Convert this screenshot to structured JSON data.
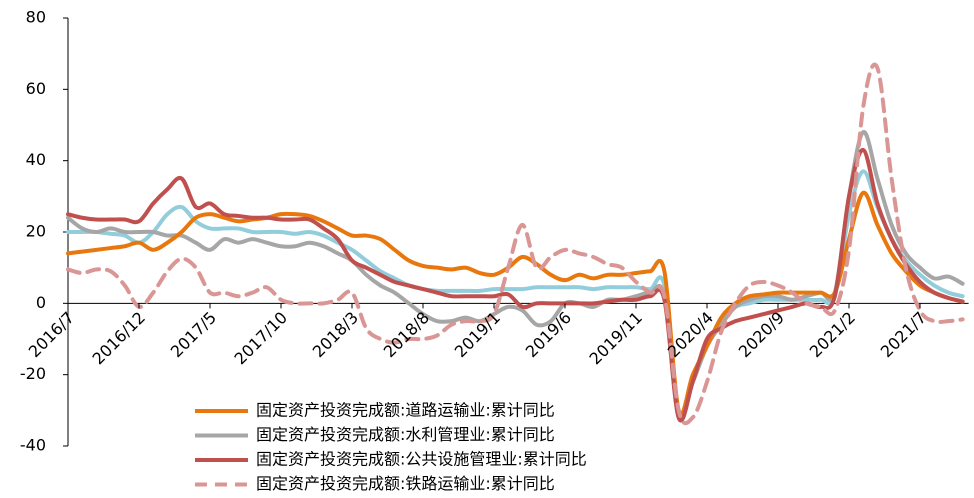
{
  "chart_data": {
    "type": "line",
    "categories": [
      "2016/7",
      null,
      null,
      null,
      null,
      "2016/12",
      null,
      null,
      null,
      null,
      "2017/5",
      null,
      null,
      null,
      null,
      "2017/10",
      null,
      null,
      null,
      null,
      "2018/3",
      null,
      null,
      null,
      null,
      "2018/8",
      null,
      null,
      null,
      null,
      "2019/1",
      null,
      null,
      null,
      null,
      "2019/6",
      null,
      null,
      null,
      null,
      "2019/11",
      null,
      null,
      null,
      null,
      "2020/4",
      null,
      null,
      null,
      null,
      "2020/9",
      null,
      null,
      null,
      null,
      "2021/2",
      null,
      null,
      null,
      null,
      "2021/7",
      null,
      null,
      null
    ],
    "series": [
      {
        "name": "固定资产投资完成额:道路运输业:累计同比",
        "color": "#e8770e",
        "dash": false,
        "values": [
          14,
          14.5,
          15,
          15.5,
          16,
          17,
          15,
          17,
          20,
          24,
          25,
          24,
          23,
          23.5,
          24,
          25,
          25,
          24.5,
          23,
          21,
          19,
          19,
          18,
          15,
          12,
          10.5,
          10,
          9.5,
          10,
          8.5,
          8,
          10,
          13,
          11,
          8,
          6.5,
          8,
          7,
          8,
          8,
          8.5,
          9,
          9,
          -30,
          -20,
          -12,
          -4,
          0,
          2,
          2.5,
          3,
          3,
          3,
          3,
          3,
          18,
          31,
          22,
          14,
          9,
          5,
          3,
          1.5,
          0.5
        ]
      },
      {
        "name": "固定资产投资完成额:水利管理业:累计同比",
        "color": "#a6a6a6",
        "dash": false,
        "values": [
          24,
          21,
          20,
          21,
          20,
          20,
          20,
          19,
          19,
          17,
          15,
          18,
          17,
          18,
          17,
          16,
          16,
          17,
          16,
          14,
          12,
          8,
          5,
          3,
          0,
          -3,
          -5,
          -5,
          -4,
          -5,
          -3,
          -1,
          -2,
          -6,
          -5,
          0,
          0,
          -1,
          1,
          1,
          2,
          3,
          2,
          -32,
          -22,
          -12,
          -6,
          -1,
          1,
          2,
          2,
          1,
          2,
          3,
          3,
          30,
          48,
          35,
          22,
          14,
          10,
          7,
          7.5,
          5.5
        ]
      },
      {
        "name": "固定资产投资完成额:公共设施管理业:累计同比",
        "color": "#c0504d",
        "dash": false,
        "values": [
          25,
          24,
          23.5,
          23.5,
          23.5,
          23,
          28,
          32,
          35,
          27,
          28,
          25,
          24.5,
          24,
          24,
          23.5,
          23.5,
          23.5,
          21,
          18,
          12,
          10,
          8,
          6,
          5,
          4,
          3,
          2,
          2,
          2,
          2,
          2.5,
          -1,
          0,
          0,
          0,
          0,
          0,
          0.5,
          1,
          1,
          2,
          1,
          -32,
          -22,
          -10,
          -7,
          -5,
          -4,
          -3,
          -2,
          -1,
          0,
          -1,
          2,
          30,
          43,
          28,
          18,
          11,
          6,
          3,
          1.5,
          0.5
        ]
      },
      {
        "name": "固定资产投资完成额:铁路运输业:累计同比",
        "color": "#d99694",
        "dash": true,
        "values": [
          9.5,
          8.5,
          9.5,
          9,
          5,
          -1,
          3,
          9,
          12.5,
          10,
          3,
          3,
          2,
          3,
          4.5,
          1,
          0,
          0,
          0,
          1,
          3,
          -7,
          -10,
          -11,
          -10,
          -10,
          -9,
          -6,
          -5,
          -5,
          -3,
          10,
          22,
          10,
          13,
          15,
          14,
          13,
          11,
          10,
          6,
          3,
          2,
          -30,
          -32,
          -22,
          -8,
          0,
          5,
          6,
          5,
          3,
          0,
          -1,
          -2,
          15,
          55,
          66,
          35,
          10,
          -2,
          -5,
          -5,
          -4.5
        ]
      },
      {
        "color": "#92cddc",
        "dash": false,
        "values": [
          20,
          20,
          20,
          19.5,
          19,
          17,
          20,
          25,
          27,
          23,
          21,
          21,
          21,
          20,
          20,
          20,
          19.5,
          20,
          19,
          17,
          15,
          12,
          9,
          7,
          5,
          4,
          3.5,
          3.5,
          3.5,
          3.5,
          4,
          4,
          4,
          4.5,
          4.5,
          4.5,
          4.5,
          4,
          4.5,
          4.5,
          4.5,
          4,
          5,
          -30,
          -22,
          -12,
          -5,
          -1,
          0,
          1,
          1,
          1,
          1,
          1,
          2,
          25,
          37,
          27,
          18,
          12,
          8,
          5,
          3,
          2
        ]
      }
    ],
    "ylim": [
      -40,
      80
    ],
    "yticks": [
      -40,
      -20,
      0,
      20,
      40,
      60,
      80
    ]
  }
}
